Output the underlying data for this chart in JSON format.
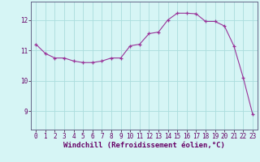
{
  "x": [
    0,
    1,
    2,
    3,
    4,
    5,
    6,
    7,
    8,
    9,
    10,
    11,
    12,
    13,
    14,
    15,
    16,
    17,
    18,
    19,
    20,
    21,
    22,
    23
  ],
  "y": [
    11.2,
    10.9,
    10.75,
    10.75,
    10.65,
    10.6,
    10.6,
    10.65,
    10.75,
    10.75,
    11.15,
    11.2,
    11.55,
    11.6,
    12.0,
    12.22,
    12.22,
    12.2,
    11.95,
    11.95,
    11.8,
    11.15,
    10.1,
    8.9
  ],
  "line_color": "#993399",
  "marker": "+",
  "markersize": 3,
  "linewidth": 0.8,
  "bg_color": "#d6f5f5",
  "grid_color": "#aadddd",
  "xlabel": "Windchill (Refroidissement éolien,°C)",
  "xlabel_fontsize": 6.5,
  "tick_fontsize": 5.5,
  "yticks": [
    9,
    10,
    11,
    12
  ],
  "ylim": [
    8.4,
    12.6
  ],
  "xlim": [
    -0.5,
    23.5
  ],
  "xticks": [
    0,
    1,
    2,
    3,
    4,
    5,
    6,
    7,
    8,
    9,
    10,
    11,
    12,
    13,
    14,
    15,
    16,
    17,
    18,
    19,
    20,
    21,
    22,
    23
  ]
}
